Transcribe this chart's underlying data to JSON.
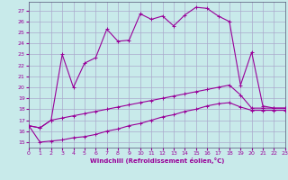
{
  "background_color": "#c8eaea",
  "grid_color": "#aaaacc",
  "line_color": "#990099",
  "xlabel": "Windchill (Refroidissement éolien,°C)",
  "xlim": [
    0,
    23
  ],
  "ylim": [
    14.5,
    27.8
  ],
  "yticks": [
    15,
    16,
    17,
    18,
    19,
    20,
    21,
    22,
    23,
    24,
    25,
    26,
    27
  ],
  "xticks": [
    0,
    1,
    2,
    3,
    4,
    5,
    6,
    7,
    8,
    9,
    10,
    11,
    12,
    13,
    14,
    15,
    16,
    17,
    18,
    19,
    20,
    21,
    22,
    23
  ],
  "s1_x": [
    0,
    1,
    2,
    3,
    4,
    5,
    6,
    7,
    8,
    9,
    10,
    11,
    12,
    13,
    14,
    15,
    16,
    17,
    18,
    19,
    20,
    21,
    22,
    23
  ],
  "s1_y": [
    16.5,
    16.3,
    17.0,
    17.2,
    17.4,
    17.6,
    17.8,
    18.0,
    18.2,
    18.4,
    18.6,
    18.8,
    19.0,
    19.2,
    19.4,
    19.6,
    19.8,
    20.0,
    20.2,
    19.3,
    18.1,
    18.1,
    18.1,
    18.1
  ],
  "s2_x": [
    0,
    1,
    2,
    3,
    4,
    5,
    6,
    7,
    8,
    9,
    10,
    11,
    12,
    13,
    14,
    15,
    16,
    17,
    18,
    19,
    20,
    21,
    22,
    23
  ],
  "s2_y": [
    16.5,
    15.0,
    15.1,
    15.2,
    15.4,
    15.5,
    15.7,
    16.0,
    16.2,
    16.5,
    16.7,
    17.0,
    17.3,
    17.5,
    17.8,
    18.0,
    18.3,
    18.5,
    18.6,
    18.2,
    17.9,
    17.9,
    17.9,
    17.9
  ],
  "s3_x": [
    0,
    1,
    2,
    3,
    4,
    5,
    6,
    7,
    8,
    9,
    10,
    11,
    12,
    13,
    14,
    15,
    16,
    17,
    18,
    19,
    20,
    21,
    22,
    23
  ],
  "s3_y": [
    16.5,
    16.3,
    17.0,
    23.0,
    20.0,
    22.2,
    22.7,
    25.3,
    24.2,
    24.3,
    26.7,
    26.2,
    26.5,
    25.6,
    26.6,
    27.3,
    27.2,
    26.5,
    26.0,
    20.2,
    23.2,
    18.3,
    18.1,
    18.1
  ],
  "font_size_ticks": 4.5,
  "font_size_xlabel": 5.0
}
